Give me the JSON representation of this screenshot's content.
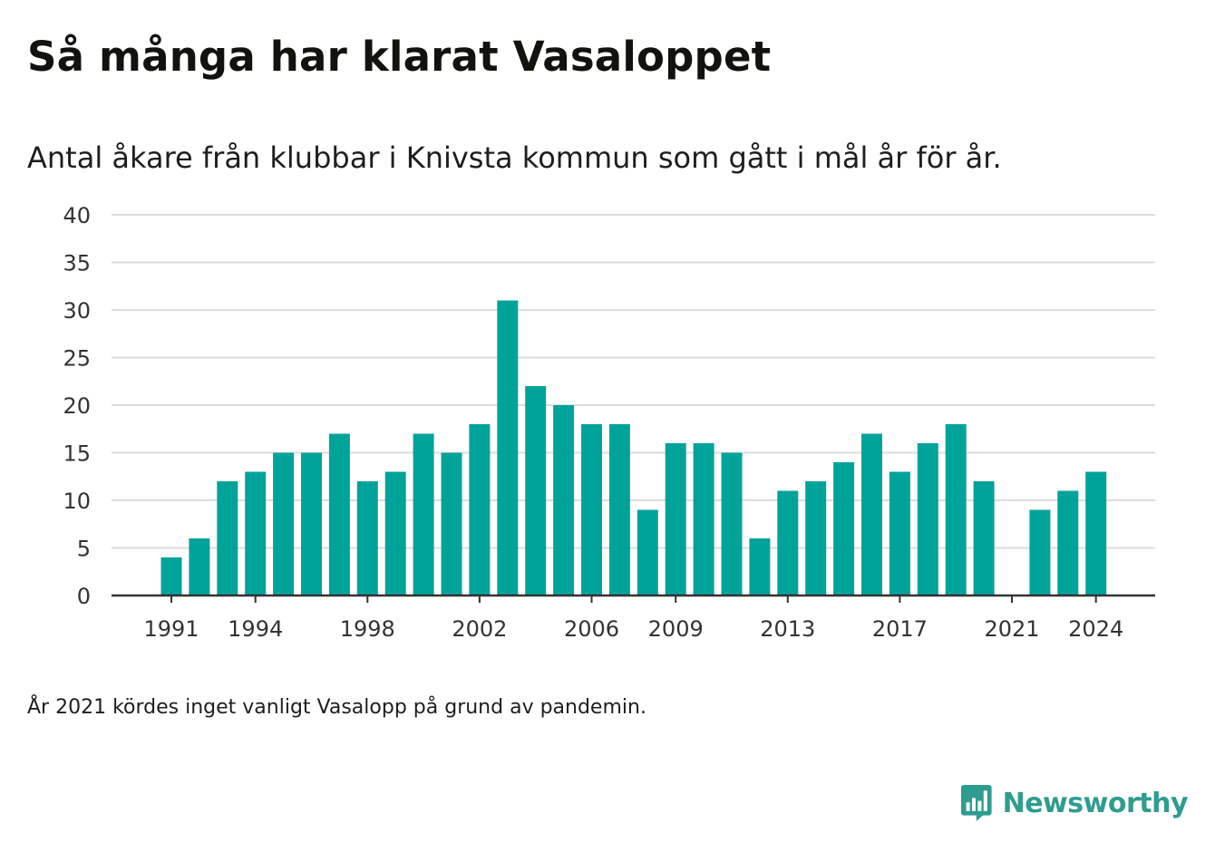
{
  "title": "Så många har klarat Vasaloppet",
  "subtitle": "Antal åkare från klubbar i Knivsta kommun som gått i mål år för år.",
  "footnote": "År 2021 kördes inget vanligt Vasalopp på grund av pandemin.",
  "brand": {
    "name": "Newsworthy",
    "icon": "newsworthy-bar-chart-icon",
    "color": "#2f9c90"
  },
  "colors": {
    "bar": "#00a39a",
    "grid": "#dcdcdc",
    "axis": "#333333",
    "text": "#333333"
  },
  "chart_data": {
    "type": "bar",
    "categories": [
      1991,
      1992,
      1993,
      1994,
      1995,
      1996,
      1997,
      1998,
      1999,
      2000,
      2001,
      2002,
      2003,
      2004,
      2005,
      2006,
      2007,
      2008,
      2009,
      2010,
      2011,
      2012,
      2013,
      2014,
      2015,
      2016,
      2017,
      2018,
      2019,
      2020,
      2021,
      2022,
      2023,
      2024
    ],
    "values": [
      4,
      6,
      12,
      13,
      15,
      15,
      17,
      12,
      13,
      17,
      15,
      18,
      31,
      22,
      20,
      18,
      18,
      9,
      16,
      16,
      15,
      6,
      11,
      12,
      14,
      17,
      13,
      16,
      18,
      12,
      null,
      9,
      11,
      13
    ],
    "x_tick_labels": [
      "1991",
      "1994",
      "1998",
      "2002",
      "2006",
      "2009",
      "2013",
      "2017",
      "2021",
      "2024"
    ],
    "y_ticks": [
      0,
      5,
      10,
      15,
      20,
      25,
      30,
      35,
      40
    ],
    "ylim": [
      0,
      40
    ],
    "xlabel": "",
    "ylabel": "",
    "grid": true,
    "legend": "none"
  }
}
